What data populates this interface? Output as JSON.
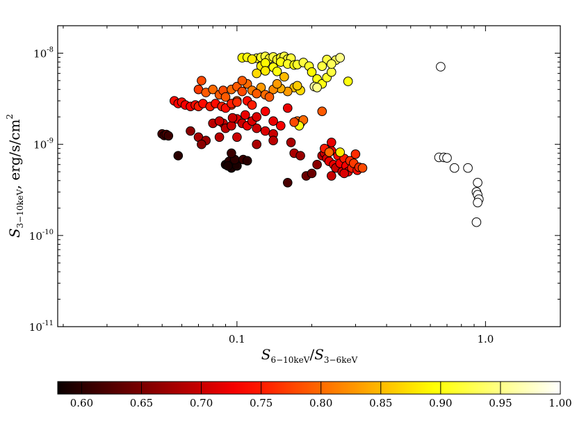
{
  "chart_data": {
    "type": "scatter",
    "title": "",
    "xlabel": {
      "base": "S",
      "sub": "6−10keV",
      "slash": "/",
      "base2": "S",
      "sub2": "3−6keV"
    },
    "ylabel": {
      "base": "S",
      "sub": "3−10keV",
      "unit": ", erg/s/cm",
      "sup": "2"
    },
    "xscale": "log",
    "yscale": "log",
    "xlim": [
      0.019,
      2.0
    ],
    "ylim": [
      1e-11,
      2e-08
    ],
    "xticks": [
      {
        "value": 0.1,
        "label": "0.1"
      },
      {
        "value": 1.0,
        "label": "1.0"
      }
    ],
    "yticks": [
      {
        "value": 1e-11,
        "base": "10",
        "exp": "-11"
      },
      {
        "value": 1e-10,
        "base": "10",
        "exp": "-10"
      },
      {
        "value": 1e-09,
        "base": "10",
        "exp": "-9"
      },
      {
        "value": 1e-08,
        "base": "10",
        "exp": "-8"
      }
    ],
    "grid": false,
    "colormap": "hot",
    "colorbar": {
      "orientation": "horizontal",
      "location": "bottom",
      "range": [
        0.58,
        1.0
      ],
      "ticks": [
        "0.60",
        "0.65",
        "0.70",
        "0.75",
        "0.80",
        "0.85",
        "0.90",
        "0.95",
        "1.00"
      ]
    },
    "colored_points": [
      [
        0.12,
        8.8e-09,
        0.91
      ],
      [
        0.125,
        9e-09,
        0.91
      ],
      [
        0.13,
        9.2e-09,
        0.92
      ],
      [
        0.135,
        8.7e-09,
        0.91
      ],
      [
        0.14,
        9.1e-09,
        0.92
      ],
      [
        0.145,
        8.5e-09,
        0.91
      ],
      [
        0.15,
        8.9e-09,
        0.91
      ],
      [
        0.155,
        9.2e-09,
        0.92
      ],
      [
        0.16,
        8.6e-09,
        0.91
      ],
      [
        0.165,
        8.8e-09,
        0.92
      ],
      [
        0.105,
        8.9e-09,
        0.89
      ],
      [
        0.11,
        9e-09,
        0.9
      ],
      [
        0.115,
        8.6e-09,
        0.88
      ],
      [
        0.125,
        7.2e-09,
        0.88
      ],
      [
        0.13,
        7.8e-09,
        0.89
      ],
      [
        0.14,
        7e-09,
        0.9
      ],
      [
        0.15,
        8e-09,
        0.9
      ],
      [
        0.16,
        7.6e-09,
        0.91
      ],
      [
        0.17,
        7.4e-09,
        0.9
      ],
      [
        0.175,
        7.5e-09,
        0.91
      ],
      [
        0.185,
        7.9e-09,
        0.92
      ],
      [
        0.195,
        7.2e-09,
        0.91
      ],
      [
        0.12,
        6e-09,
        0.87
      ],
      [
        0.13,
        6.4e-09,
        0.88
      ],
      [
        0.145,
        6.3e-09,
        0.9
      ],
      [
        0.2,
        6.2e-09,
        0.89
      ],
      [
        0.21,
        5.2e-09,
        0.9
      ],
      [
        0.22,
        4.6e-09,
        0.9
      ],
      [
        0.23,
        5.4e-09,
        0.91
      ],
      [
        0.24,
        6.2e-09,
        0.92
      ],
      [
        0.25,
        8.4e-09,
        0.93
      ],
      [
        0.26,
        8.9e-09,
        0.95
      ],
      [
        0.23,
        8.5e-09,
        0.92
      ],
      [
        0.24,
        7.6e-09,
        0.93
      ],
      [
        0.22,
        7.2e-09,
        0.92
      ],
      [
        0.205,
        4.3e-09,
        0.96
      ],
      [
        0.21,
        4.2e-09,
        0.95
      ],
      [
        0.28,
        4.9e-09,
        0.9
      ],
      [
        0.17,
        4.2e-09,
        0.85
      ],
      [
        0.18,
        3.9e-09,
        0.87
      ],
      [
        0.175,
        4.4e-09,
        0.86
      ],
      [
        0.16,
        3.8e-09,
        0.83
      ],
      [
        0.15,
        4.1e-09,
        0.84
      ],
      [
        0.155,
        5.5e-09,
        0.85
      ],
      [
        0.14,
        4e-09,
        0.82
      ],
      [
        0.145,
        4.6e-09,
        0.83
      ],
      [
        0.125,
        4.2e-09,
        0.83
      ],
      [
        0.07,
        4e-09,
        0.77
      ],
      [
        0.072,
        5e-09,
        0.78
      ],
      [
        0.075,
        3.7e-09,
        0.79
      ],
      [
        0.08,
        4e-09,
        0.8
      ],
      [
        0.085,
        3.5e-09,
        0.79
      ],
      [
        0.088,
        3.9e-09,
        0.78
      ],
      [
        0.09,
        3.3e-09,
        0.79
      ],
      [
        0.095,
        4e-09,
        0.8
      ],
      [
        0.1,
        4.3e-09,
        0.79
      ],
      [
        0.105,
        3.8e-09,
        0.78
      ],
      [
        0.11,
        4.6e-09,
        0.8
      ],
      [
        0.115,
        3.9e-09,
        0.81
      ],
      [
        0.12,
        3.6e-09,
        0.79
      ],
      [
        0.13,
        3.5e-09,
        0.8
      ],
      [
        0.135,
        3.3e-09,
        0.79
      ],
      [
        0.1,
        3e-09,
        0.8
      ],
      [
        0.095,
        2.7e-09,
        0.77
      ],
      [
        0.105,
        5e-09,
        0.79
      ],
      [
        0.056,
        3e-09,
        0.74
      ],
      [
        0.058,
        2.8e-09,
        0.73
      ],
      [
        0.06,
        2.9e-09,
        0.74
      ],
      [
        0.062,
        2.7e-09,
        0.73
      ],
      [
        0.065,
        2.6e-09,
        0.73
      ],
      [
        0.068,
        2.7e-09,
        0.74
      ],
      [
        0.07,
        2.6e-09,
        0.75
      ],
      [
        0.073,
        2.8e-09,
        0.74
      ],
      [
        0.078,
        2.6e-09,
        0.75
      ],
      [
        0.082,
        2.8e-09,
        0.74
      ],
      [
        0.087,
        2.6e-09,
        0.75
      ],
      [
        0.09,
        2.5e-09,
        0.74
      ],
      [
        0.095,
        2.8e-09,
        0.75
      ],
      [
        0.1,
        2.9e-09,
        0.76
      ],
      [
        0.11,
        3e-09,
        0.74
      ],
      [
        0.115,
        2.7e-09,
        0.75
      ],
      [
        0.13,
        2.3e-09,
        0.73
      ],
      [
        0.16,
        2.5e-09,
        0.72
      ],
      [
        0.22,
        2.3e-09,
        0.79
      ],
      [
        0.088,
        1.7e-09,
        0.7
      ],
      [
        0.09,
        1.5e-09,
        0.69
      ],
      [
        0.095,
        1.6e-09,
        0.7
      ],
      [
        0.1,
        1.9e-09,
        0.71
      ],
      [
        0.105,
        1.7e-09,
        0.7
      ],
      [
        0.11,
        1.6e-09,
        0.72
      ],
      [
        0.115,
        1.8e-09,
        0.71
      ],
      [
        0.12,
        1.5e-09,
        0.7
      ],
      [
        0.13,
        1.4e-09,
        0.71
      ],
      [
        0.14,
        1.8e-09,
        0.72
      ],
      [
        0.15,
        1.6e-09,
        0.73
      ],
      [
        0.108,
        2.1e-09,
        0.72
      ],
      [
        0.12,
        2e-09,
        0.71
      ],
      [
        0.08,
        1.7e-09,
        0.69
      ],
      [
        0.085,
        1.8e-09,
        0.7
      ],
      [
        0.096,
        1.95e-09,
        0.7
      ],
      [
        0.14,
        1.3e-09,
        0.7
      ],
      [
        0.175,
        1.8e-09,
        0.8
      ],
      [
        0.18,
        1.7e-09,
        0.82
      ],
      [
        0.185,
        1.85e-09,
        0.8
      ],
      [
        0.178,
        1.6e-09,
        0.9
      ],
      [
        0.17,
        1.75e-09,
        0.78
      ],
      [
        0.07,
        1.2e-09,
        0.68
      ],
      [
        0.075,
        1.1e-09,
        0.67
      ],
      [
        0.072,
        1e-09,
        0.66
      ],
      [
        0.085,
        1.2e-09,
        0.69
      ],
      [
        0.1,
        1.2e-09,
        0.7
      ],
      [
        0.12,
        1e-09,
        0.68
      ],
      [
        0.14,
        1.1e-09,
        0.69
      ],
      [
        0.165,
        1.05e-09,
        0.68
      ],
      [
        0.065,
        1.4e-09,
        0.66
      ],
      [
        0.05,
        1.3e-09,
        0.62
      ],
      [
        0.051,
        1.25e-09,
        0.61
      ],
      [
        0.052,
        1.28e-09,
        0.62
      ],
      [
        0.053,
        1.24e-09,
        0.61
      ],
      [
        0.058,
        7.5e-10,
        0.6
      ],
      [
        0.09,
        6e-10,
        0.59
      ],
      [
        0.093,
        6.5e-10,
        0.6
      ],
      [
        0.095,
        5.5e-10,
        0.59
      ],
      [
        0.097,
        6.2e-10,
        0.6
      ],
      [
        0.1,
        5.8e-10,
        0.59
      ],
      [
        0.092,
        5.8e-10,
        0.59
      ],
      [
        0.098,
        6.8e-10,
        0.6
      ],
      [
        0.106,
        6.8e-10,
        0.61
      ],
      [
        0.11,
        6.6e-10,
        0.6
      ],
      [
        0.095,
        8e-10,
        0.61
      ],
      [
        0.17,
        8e-10,
        0.68
      ],
      [
        0.18,
        7.5e-10,
        0.67
      ],
      [
        0.19,
        4.5e-10,
        0.64
      ],
      [
        0.2,
        4.8e-10,
        0.64
      ],
      [
        0.16,
        3.8e-10,
        0.62
      ],
      [
        0.21,
        6e-10,
        0.66
      ],
      [
        0.22,
        7.5e-10,
        0.69
      ],
      [
        0.225,
        8e-10,
        0.7
      ],
      [
        0.23,
        7e-10,
        0.71
      ],
      [
        0.235,
        6.5e-10,
        0.72
      ],
      [
        0.24,
        8.5e-10,
        0.73
      ],
      [
        0.245,
        6e-10,
        0.72
      ],
      [
        0.25,
        5.5e-10,
        0.7
      ],
      [
        0.255,
        7.5e-10,
        0.74
      ],
      [
        0.26,
        6.2e-10,
        0.73
      ],
      [
        0.265,
        5e-10,
        0.71
      ],
      [
        0.27,
        7e-10,
        0.75
      ],
      [
        0.275,
        5.8e-10,
        0.73
      ],
      [
        0.28,
        5e-10,
        0.72
      ],
      [
        0.285,
        6.6e-10,
        0.76
      ],
      [
        0.29,
        5.5e-10,
        0.75
      ],
      [
        0.295,
        6.2e-10,
        0.77
      ],
      [
        0.3,
        7.8e-10,
        0.76
      ],
      [
        0.305,
        5.2e-10,
        0.74
      ],
      [
        0.31,
        5.6e-10,
        0.76
      ],
      [
        0.32,
        5.5e-10,
        0.78
      ],
      [
        0.24,
        1.05e-09,
        0.72
      ],
      [
        0.225,
        9e-10,
        0.75
      ],
      [
        0.235,
        8.2e-10,
        0.8
      ],
      [
        0.26,
        8.2e-10,
        0.88
      ],
      [
        0.24,
        4.5e-10,
        0.7
      ],
      [
        0.27,
        4.8e-10,
        0.71
      ]
    ],
    "open_points": [
      [
        0.66,
        7.1e-09
      ],
      [
        0.65,
        7.2e-10
      ],
      [
        0.68,
        7.2e-10
      ],
      [
        0.7,
        7.1e-10
      ],
      [
        0.75,
        5.5e-10
      ],
      [
        0.85,
        5.5e-10
      ],
      [
        0.93,
        3.8e-10
      ],
      [
        0.92,
        3e-10
      ],
      [
        0.93,
        2.8e-10
      ],
      [
        0.94,
        2.5e-10
      ],
      [
        0.93,
        2.3e-10
      ],
      [
        0.92,
        1.4e-10
      ]
    ]
  }
}
